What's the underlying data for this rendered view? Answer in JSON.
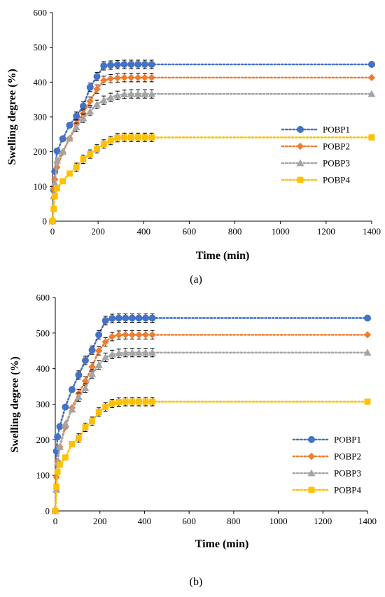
{
  "chart_data": [
    {
      "type": "line",
      "panel_label": "(a)",
      "xlabel": "Time (min)",
      "ylabel": "Swelling degree (%)",
      "xlim": [
        0,
        1400
      ],
      "ylim": [
        0,
        600
      ],
      "xticks": [
        "0",
        "200",
        "400",
        "600",
        "800",
        "1000",
        "1200",
        "1400"
      ],
      "yticks": [
        "0",
        "100",
        "200",
        "300",
        "400",
        "500",
        "600"
      ],
      "grid": false,
      "legend_position": "right",
      "error_bars": true,
      "series": [
        {
          "name": "POBP1",
          "color": "#4472C4",
          "marker": "circle",
          "x": [
            0,
            5,
            10,
            20,
            45,
            75,
            105,
            135,
            165,
            195,
            225,
            255,
            285,
            315,
            345,
            375,
            405,
            435,
            1400
          ],
          "y": [
            0,
            90,
            143,
            202,
            237,
            276,
            302,
            331,
            385,
            416,
            447,
            449,
            450,
            451,
            451,
            451,
            451,
            451,
            451
          ]
        },
        {
          "name": "POBP2",
          "color": "#ED7D31",
          "marker": "diamond",
          "x": [
            0,
            5,
            10,
            20,
            45,
            75,
            105,
            135,
            165,
            195,
            225,
            255,
            285,
            315,
            345,
            375,
            405,
            435,
            1400
          ],
          "y": [
            0,
            92,
            120,
            155,
            198,
            238,
            280,
            310,
            345,
            380,
            405,
            410,
            412,
            413,
            413,
            413,
            413,
            413,
            413
          ]
        },
        {
          "name": "POBP3",
          "color": "#A5A5A5",
          "marker": "triangle",
          "x": [
            0,
            5,
            10,
            20,
            45,
            75,
            105,
            135,
            165,
            195,
            225,
            255,
            285,
            315,
            345,
            375,
            405,
            435,
            1400
          ],
          "y": [
            0,
            72,
            110,
            175,
            200,
            238,
            270,
            296,
            316,
            336,
            348,
            356,
            362,
            365,
            366,
            366,
            366,
            366,
            366
          ]
        },
        {
          "name": "POBP4",
          "color": "#FFC000",
          "marker": "square",
          "x": [
            0,
            5,
            10,
            20,
            45,
            75,
            105,
            135,
            165,
            195,
            225,
            255,
            285,
            315,
            345,
            375,
            405,
            435,
            1400
          ],
          "y": [
            0,
            35,
            72,
            95,
            115,
            137,
            155,
            178,
            193,
            208,
            222,
            232,
            240,
            241,
            241,
            241,
            241,
            241,
            241
          ]
        }
      ]
    },
    {
      "type": "line",
      "panel_label": "(b)",
      "xlabel": "Time (min)",
      "ylabel": "Swelling degree  (%)",
      "xlim": [
        0,
        1400
      ],
      "ylim": [
        0,
        600
      ],
      "xticks": [
        "0",
        "200",
        "400",
        "600",
        "800",
        "1000",
        "1200",
        "1400"
      ],
      "yticks": [
        "0",
        "100",
        "200",
        "300",
        "400",
        "500",
        "600"
      ],
      "grid": false,
      "legend_position": "right",
      "error_bars": true,
      "series": [
        {
          "name": "POBP1",
          "color": "#4472C4",
          "marker": "circle",
          "x": [
            0,
            5,
            10,
            20,
            45,
            75,
            105,
            135,
            165,
            195,
            225,
            255,
            285,
            315,
            345,
            375,
            405,
            435,
            1400
          ],
          "y": [
            0,
            168,
            208,
            237,
            292,
            341,
            382,
            423,
            452,
            495,
            535,
            541,
            542,
            542,
            542,
            542,
            542,
            542,
            542
          ]
        },
        {
          "name": "POBP2",
          "color": "#ED7D31",
          "marker": "diamond",
          "x": [
            0,
            5,
            10,
            20,
            45,
            75,
            105,
            135,
            165,
            195,
            225,
            255,
            285,
            315,
            345,
            375,
            405,
            435,
            1400
          ],
          "y": [
            0,
            95,
            140,
            180,
            235,
            290,
            330,
            365,
            405,
            450,
            475,
            490,
            494,
            495,
            495,
            495,
            495,
            495,
            495
          ]
        },
        {
          "name": "POBP3",
          "color": "#A5A5A5",
          "marker": "triangle",
          "x": [
            0,
            5,
            10,
            20,
            45,
            75,
            105,
            135,
            165,
            195,
            225,
            255,
            285,
            315,
            345,
            375,
            405,
            435,
            1400
          ],
          "y": [
            0,
            60,
            135,
            180,
            245,
            285,
            320,
            345,
            385,
            410,
            432,
            440,
            443,
            445,
            445,
            445,
            445,
            445,
            445
          ]
        },
        {
          "name": "POBP4",
          "color": "#FFC000",
          "marker": "square",
          "x": [
            0,
            5,
            10,
            20,
            45,
            75,
            105,
            135,
            165,
            195,
            225,
            255,
            285,
            315,
            345,
            375,
            405,
            435,
            1400
          ],
          "y": [
            0,
            68,
            110,
            130,
            150,
            188,
            205,
            235,
            252,
            278,
            292,
            302,
            306,
            307,
            307,
            307,
            307,
            307,
            307
          ]
        }
      ]
    }
  ]
}
